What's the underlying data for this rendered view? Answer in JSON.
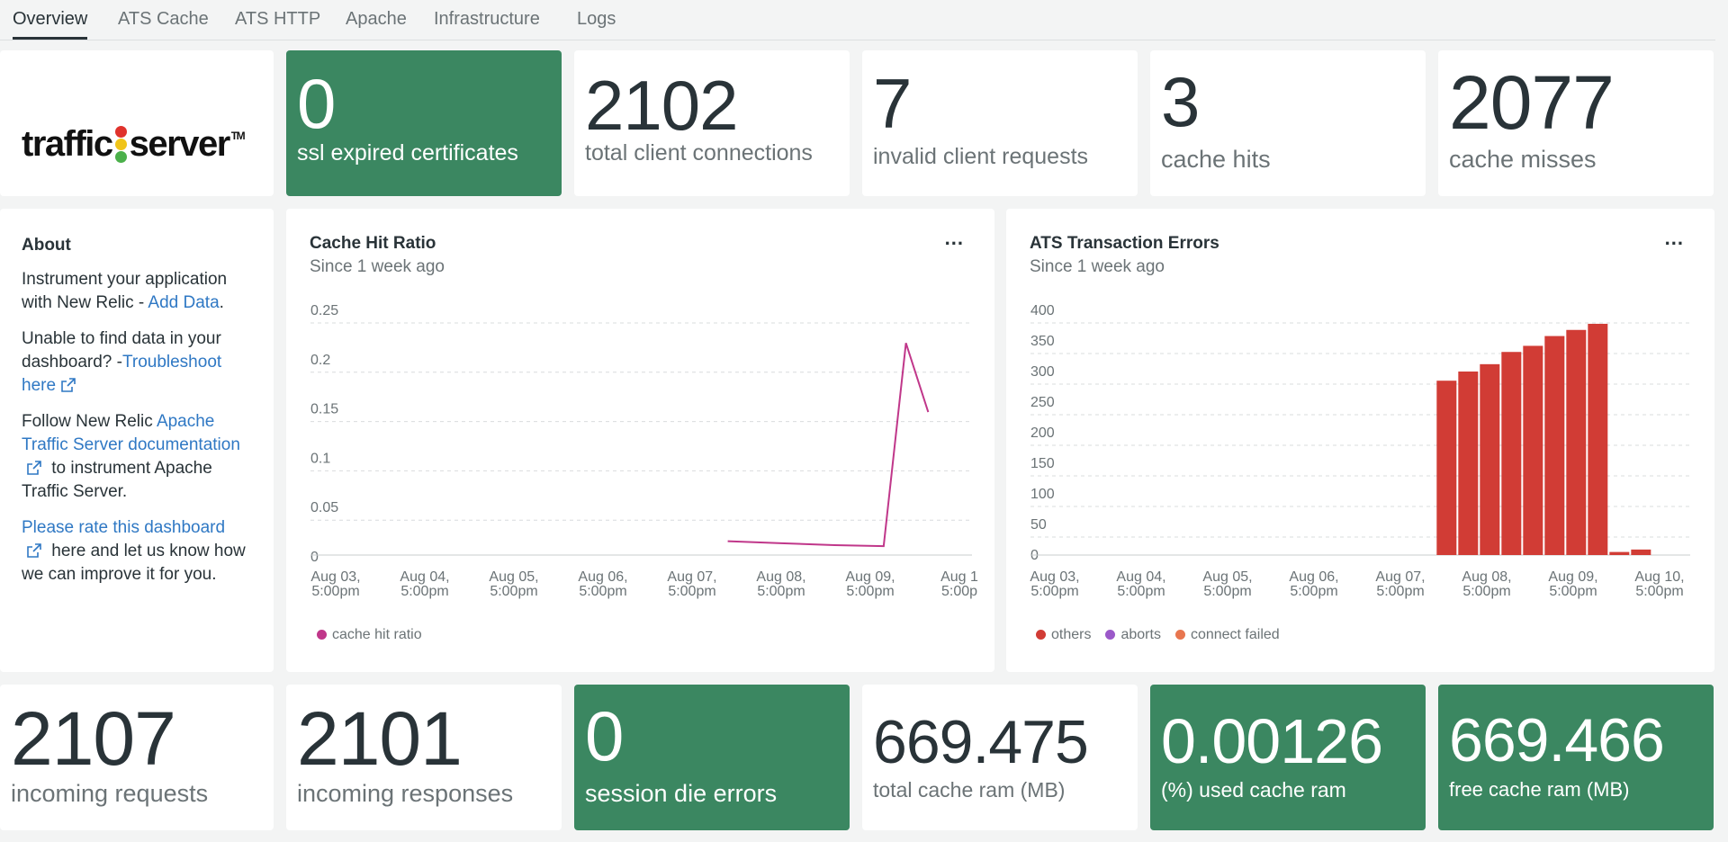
{
  "tabs": [
    "Overview",
    "ATS Cache",
    "ATS HTTP",
    "Apache",
    "Infrastructure",
    "Logs"
  ],
  "logo": {
    "left": "traffic",
    "right": "server",
    "tm": "TM"
  },
  "tiles_top": [
    {
      "value": "0",
      "label": "ssl expired certificates"
    },
    {
      "value": "2102",
      "label": "total client connections"
    },
    {
      "value": "7",
      "label": "invalid client requests"
    },
    {
      "value": "3",
      "label": "cache hits"
    },
    {
      "value": "2077",
      "label": "cache misses"
    }
  ],
  "tiles_bottom": [
    {
      "value": "2107",
      "label": "incoming requests"
    },
    {
      "value": "2101",
      "label": "incoming responses"
    },
    {
      "value": "0",
      "label": "session die errors"
    },
    {
      "value": "669.475",
      "label": "total cache ram (MB)"
    },
    {
      "value": "0.00126",
      "label": "(%) used cache ram"
    },
    {
      "value": "669.466",
      "label": "free cache ram (MB)"
    }
  ],
  "about": {
    "title": "About",
    "p1_text": "Instrument your application with New Relic - ",
    "p1_link": "Add Data",
    "p2_text": "Unable to find data in your dashboard? -",
    "p2_link": "Troubleshoot here",
    "p3_text": "Follow New Relic ",
    "p3_link": "Apache Traffic Server documentation",
    "p3_tail": " to instrument Apache Traffic Server.",
    "p4_link": "Please rate this dashboard",
    "p4_tail": " here and let us know how we can improve it for you."
  },
  "cache_chart": {
    "title": "Cache Hit Ratio",
    "subtitle": "Since 1 week ago",
    "menu": "..."
  },
  "errors_chart": {
    "title": "ATS Transaction Errors",
    "subtitle": "Since 1 week ago",
    "menu": "..."
  },
  "colors": {
    "green": "#3b8761",
    "line": "#c0378a",
    "bar": "#d13c35",
    "aborts": "#9b59c9",
    "connect_failed": "#e8764f"
  },
  "chart_data": [
    {
      "type": "line",
      "title": "Cache Hit Ratio",
      "ylim": [
        0,
        0.25
      ],
      "yticks": [
        "0",
        "0.05",
        "0.1",
        "0.15",
        "0.2",
        "0.25"
      ],
      "xticks": [
        "Aug 03,",
        "Aug 04,",
        "Aug 05,",
        "Aug 06,",
        "Aug 07,",
        "Aug 08,",
        "Aug 09,",
        "Aug 1"
      ],
      "xticks2": [
        "5:00pm",
        "5:00pm",
        "5:00pm",
        "5:00pm",
        "5:00pm",
        "5:00pm",
        "5:00pm",
        "5:00p"
      ],
      "series": [
        {
          "name": "cache hit ratio",
          "x": [
            4.4,
            5.0,
            5.6,
            6.15,
            6.4,
            6.65
          ],
          "values": [
            0.014,
            0.012,
            0.01,
            0.009,
            0.215,
            0.145
          ]
        }
      ]
    },
    {
      "type": "bar",
      "title": "ATS Transaction Errors",
      "ylim": [
        0,
        400
      ],
      "yticks": [
        "0",
        "50",
        "100",
        "150",
        "200",
        "250",
        "300",
        "350",
        "400"
      ],
      "xticks": [
        "Aug 03,",
        "Aug 04,",
        "Aug 05,",
        "Aug 06,",
        "Aug 07,",
        "Aug 08,",
        "Aug 09,",
        "Aug 10,"
      ],
      "xticks2": [
        "5:00pm",
        "5:00pm",
        "5:00pm",
        "5:00pm",
        "5:00pm",
        "5:00pm",
        "5:00pm",
        "5:00pm"
      ],
      "series": [
        {
          "name": "others",
          "values": [
            285,
            300,
            312,
            332,
            342,
            358,
            368,
            378,
            5,
            9
          ]
        },
        {
          "name": "aborts",
          "values": []
        },
        {
          "name": "connect failed",
          "values": []
        }
      ],
      "bar_start_day": 4.42,
      "bar_width_days": 0.25
    }
  ]
}
